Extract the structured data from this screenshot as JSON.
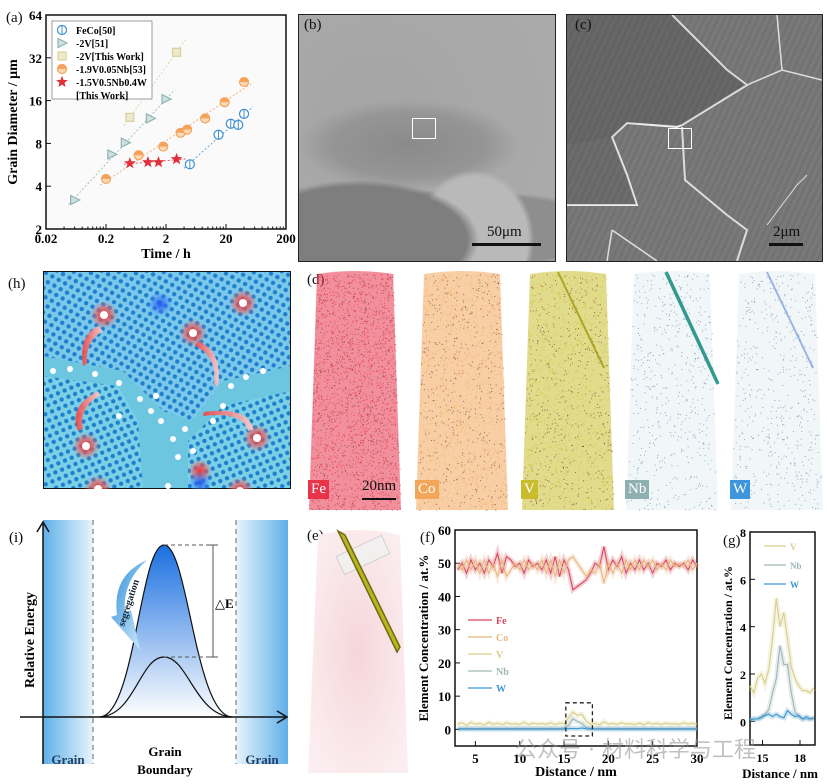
{
  "panels": {
    "a": {
      "label": "(a)"
    },
    "b": {
      "label": "(b)",
      "scale_bar": "50μm"
    },
    "c": {
      "label": "(c)",
      "scale_bar": "2μm"
    },
    "d": {
      "label": "(d)",
      "scale_bar": "20nm",
      "elements": [
        {
          "name": "Fe",
          "color": "#e8334a"
        },
        {
          "name": "Co",
          "color": "#f2a65a"
        },
        {
          "name": "V",
          "color": "#c9bd2e"
        },
        {
          "name": "Nb",
          "color": "#8fb0b0"
        },
        {
          "name": "W",
          "color": "#3d95de"
        }
      ]
    },
    "e": {
      "label": "(e)"
    },
    "f": {
      "label": "(f)"
    },
    "g": {
      "label": "(g)"
    },
    "h": {
      "label": "(h)"
    },
    "i": {
      "label": "(i)",
      "ylabel": "Relative Energy",
      "delta": "△E",
      "arrow_text": "segregation",
      "regions": [
        "Grain",
        "Grain\nBoundary",
        "Grain"
      ],
      "region_left": "Grain",
      "region_mid_1": "Grain",
      "region_mid_2": "Boundary",
      "region_right": "Grain"
    }
  },
  "watermark": "公众号 · 材料科学与工程",
  "chart_data": [
    {
      "id": "a",
      "type": "scatter",
      "title": "",
      "xlabel": "Time / h",
      "ylabel": "Grain Diameter / μm",
      "xscale": "log10",
      "yscale": "log2",
      "xlim": [
        0.02,
        200
      ],
      "ylim": [
        2,
        64
      ],
      "xticks": [
        "0.02",
        "0.2",
        "2",
        "20",
        "200"
      ],
      "yticks": [
        "2",
        "4",
        "8",
        "16",
        "32",
        "64"
      ],
      "legend_position": "top-left",
      "series": [
        {
          "name": "FeCo[50]",
          "marker": "circle-bar",
          "color": "#3d8fd1",
          "x": [
            5,
            15,
            24,
            32,
            40
          ],
          "y": [
            5.7,
            9.2,
            11.0,
            10.8,
            12.9
          ]
        },
        {
          "name": "-2V[51]",
          "marker": "triangle-right",
          "color": "#8fb3b3",
          "x": [
            0.06,
            0.25,
            0.42,
            1.1,
            2.0
          ],
          "y": [
            3.2,
            6.7,
            8.1,
            12.0,
            16.4
          ]
        },
        {
          "name": "-2V[This Work]",
          "marker": "square",
          "color": "#d9cfa0",
          "x": [
            0.5,
            3.0
          ],
          "y": [
            12.2,
            35.0
          ]
        },
        {
          "name": "-1.9V0.05Nb[53]",
          "marker": "circle-half",
          "color": "#f3a35c",
          "x": [
            0.2,
            0.7,
            1.8,
            3.5,
            4.5,
            9,
            19,
            40
          ],
          "y": [
            4.5,
            6.6,
            7.6,
            9.5,
            10.0,
            12.0,
            15.6,
            21.6
          ]
        },
        {
          "name": "-1.5V0.5Nb0.4W\n[This Work]",
          "marker": "star",
          "color": "#e0303a",
          "x": [
            0.5,
            1.0,
            1.5,
            3.0
          ],
          "y": [
            5.8,
            5.9,
            5.9,
            6.2
          ]
        }
      ]
    },
    {
      "id": "f",
      "type": "line",
      "xlabel": "Distance / nm",
      "ylabel": "Element Concentration / at.%",
      "xlim": [
        2.7,
        30
      ],
      "ylim": [
        -5,
        60
      ],
      "xticks": [
        "5",
        "10",
        "15",
        "20",
        "25",
        "30"
      ],
      "yticks": [
        "0",
        "10",
        "20",
        "30",
        "40",
        "50",
        "60"
      ],
      "legend_position": "center-left",
      "highlight_box": {
        "x": [
          15.2,
          18.2
        ],
        "y": [
          -2,
          8
        ]
      },
      "x": [
        3,
        3.5,
        4,
        4.5,
        5,
        5.5,
        6,
        6.5,
        7,
        7.5,
        8,
        8.5,
        9,
        9.5,
        10,
        10.5,
        11,
        11.5,
        12,
        12.5,
        13,
        13.5,
        14,
        14.5,
        15,
        15.5,
        16,
        16.5,
        17,
        17.5,
        18,
        18.5,
        19,
        19.5,
        20,
        20.5,
        21,
        21.5,
        22,
        22.5,
        23,
        23.5,
        24,
        24.5,
        25,
        25.5,
        26,
        26.5,
        27,
        27.5,
        28,
        28.5,
        29,
        29.5,
        30
      ],
      "series": [
        {
          "name": "Fe",
          "color": "#d9455c",
          "values": [
            48,
            50,
            47,
            51,
            48,
            50,
            47,
            51,
            49,
            53,
            47,
            52,
            51,
            49,
            50,
            47,
            51,
            49,
            50,
            48,
            51,
            47,
            52,
            46,
            51,
            48,
            42,
            43,
            44,
            45,
            47,
            50,
            49,
            55,
            48,
            51,
            49,
            52,
            47,
            50,
            48,
            51,
            48,
            50,
            47,
            50,
            49,
            51,
            48,
            50,
            49,
            50,
            48,
            51,
            49
          ]
        },
        {
          "name": "Co",
          "color": "#e8b57a",
          "values": [
            50,
            48,
            51,
            48,
            51,
            47,
            51,
            47,
            50,
            46,
            51,
            46,
            48,
            50,
            48,
            51,
            48,
            50,
            48,
            51,
            47,
            51,
            46,
            51,
            47,
            51,
            52,
            50,
            48,
            46,
            48,
            47,
            50,
            44,
            50,
            47,
            50,
            47,
            51,
            48,
            51,
            48,
            51,
            49,
            51,
            48,
            50,
            48,
            51,
            49,
            50,
            49,
            51,
            48,
            50
          ]
        },
        {
          "name": "V",
          "color": "#d7cf8a",
          "values": [
            1.5,
            2,
            1.2,
            2.1,
            1.6,
            1.8,
            1.3,
            2.2,
            1.5,
            1.9,
            1.4,
            2,
            1.6,
            1.7,
            1.5,
            2.1,
            1.4,
            1.9,
            1.6,
            1.8,
            1.5,
            2,
            1.4,
            1.9,
            1.7,
            3.5,
            5.2,
            4.2,
            4.6,
            2.5,
            1.5,
            1.8,
            1.3,
            2.3,
            1.6,
            1.8,
            1.5,
            2,
            1.6,
            1.7,
            1.5,
            1.9,
            1.4,
            2,
            1.6,
            1.8,
            1.5,
            1.9,
            1.6,
            1.7,
            1.5,
            2,
            1.6,
            1.8,
            1.5
          ]
        },
        {
          "name": "Nb",
          "color": "#9fb6b6",
          "values": [
            0.2,
            0.3,
            0.2,
            0.3,
            0.2,
            0.3,
            0.2,
            0.3,
            0.2,
            0.3,
            0.2,
            0.3,
            0.2,
            0.3,
            0.2,
            0.3,
            0.2,
            0.3,
            0.2,
            0.3,
            0.2,
            0.3,
            0.2,
            0.3,
            0.4,
            1.2,
            3.2,
            2.4,
            1.8,
            0.6,
            0.3,
            0.2,
            0.3,
            0.2,
            0.3,
            0.2,
            0.3,
            0.2,
            0.3,
            0.2,
            0.3,
            0.2,
            0.3,
            0.2,
            0.3,
            0.2,
            0.3,
            0.2,
            0.3,
            0.2,
            0.3,
            0.2,
            0.3,
            0.2,
            0.3
          ]
        },
        {
          "name": "W",
          "color": "#3c96cf",
          "values": [
            0.1,
            0.1,
            0.1,
            0.1,
            0.1,
            0.1,
            0.1,
            0.1,
            0.1,
            0.1,
            0.1,
            0.1,
            0.1,
            0.1,
            0.1,
            0.1,
            0.1,
            0.1,
            0.1,
            0.1,
            0.1,
            0.1,
            0.1,
            0.1,
            0.1,
            0.2,
            0.3,
            0.2,
            0.4,
            0.2,
            0.1,
            0.1,
            0.1,
            0.1,
            0.1,
            0.1,
            0.1,
            0.1,
            0.1,
            0.1,
            0.1,
            0.1,
            0.1,
            0.1,
            0.1,
            0.1,
            0.1,
            0.1,
            0.1,
            0.1,
            0.1,
            0.1,
            0.1,
            0.1,
            0.1
          ]
        }
      ]
    },
    {
      "id": "g",
      "type": "line",
      "xlabel": "Distance / nm",
      "ylabel": "Element Concentration / at.%",
      "xlim": [
        14.0,
        19.2
      ],
      "ylim": [
        -1,
        8
      ],
      "xticks": [
        "15",
        "18"
      ],
      "yticks": [
        "0",
        "2",
        "4",
        "6",
        "8"
      ],
      "legend_position": "top",
      "x": [
        14.0,
        14.3,
        14.6,
        14.9,
        15.2,
        15.5,
        15.8,
        16.1,
        16.4,
        16.7,
        17.0,
        17.3,
        17.6,
        17.9,
        18.2,
        18.5,
        18.8,
        19.1
      ],
      "series": [
        {
          "name": "V",
          "color": "#d7cf8a",
          "values": [
            1.5,
            1.2,
            1.8,
            2.0,
            1.6,
            2.2,
            3.5,
            5.2,
            4.0,
            4.6,
            3.5,
            2.3,
            1.8,
            1.5,
            1.3,
            1.3,
            1.2,
            1.4
          ]
        },
        {
          "name": "Nb",
          "color": "#9fb6b6",
          "values": [
            0.1,
            0.1,
            0.1,
            0.2,
            0.3,
            0.5,
            1.2,
            1.8,
            3.2,
            2.4,
            2.4,
            1.2,
            0.4,
            0.2,
            0.1,
            0.1,
            0.1,
            0.1
          ]
        },
        {
          "name": "W",
          "color": "#3c96cf",
          "values": [
            0.05,
            0.1,
            0.1,
            0.15,
            0.25,
            0.3,
            0.2,
            0.3,
            0.2,
            0.15,
            0.45,
            0.3,
            0.2,
            0.25,
            0.1,
            0.2,
            0.1,
            0.15
          ]
        }
      ]
    }
  ]
}
